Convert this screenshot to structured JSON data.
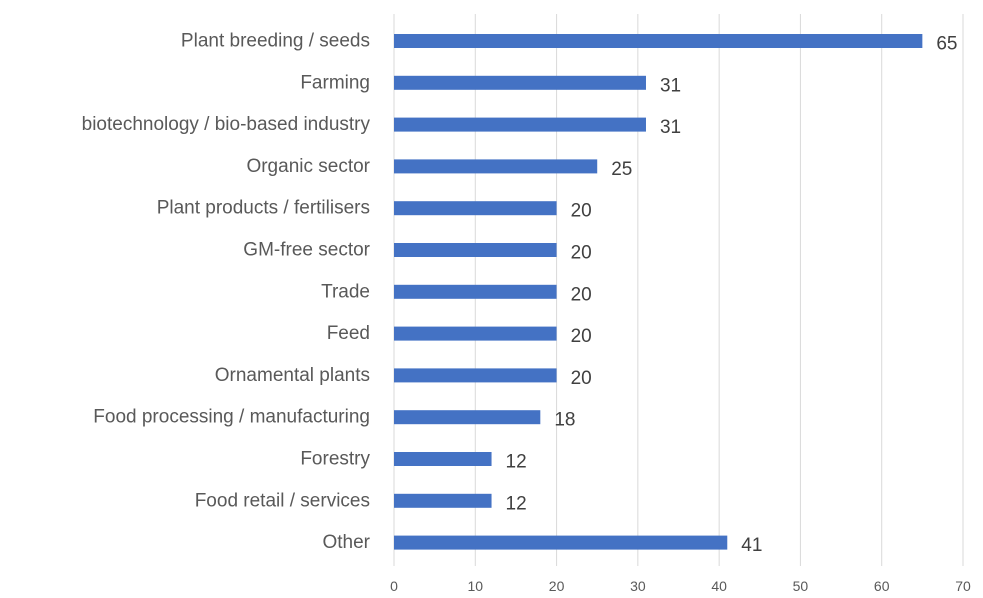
{
  "chart_data": {
    "type": "bar",
    "orientation": "horizontal",
    "title": "",
    "xlabel": "",
    "ylabel": "",
    "categories": [
      "Plant breeding / seeds",
      "Farming",
      "biotechnology / bio-based industry",
      "Organic sector",
      "Plant products / fertilisers",
      "GM-free sector",
      "Trade",
      "Feed",
      "Ornamental plants",
      "Food processing / manufacturing",
      "Forestry",
      "Food retail / services",
      "Other"
    ],
    "values": [
      65,
      31,
      31,
      25,
      20,
      20,
      20,
      20,
      20,
      18,
      12,
      12,
      41
    ],
    "xlim": [
      0,
      70
    ],
    "xticks": [
      0,
      10,
      20,
      30,
      40,
      50,
      60,
      70
    ],
    "grid": "vertical",
    "legend": "none",
    "data_labels": true,
    "bar_color": "#4472c4"
  }
}
